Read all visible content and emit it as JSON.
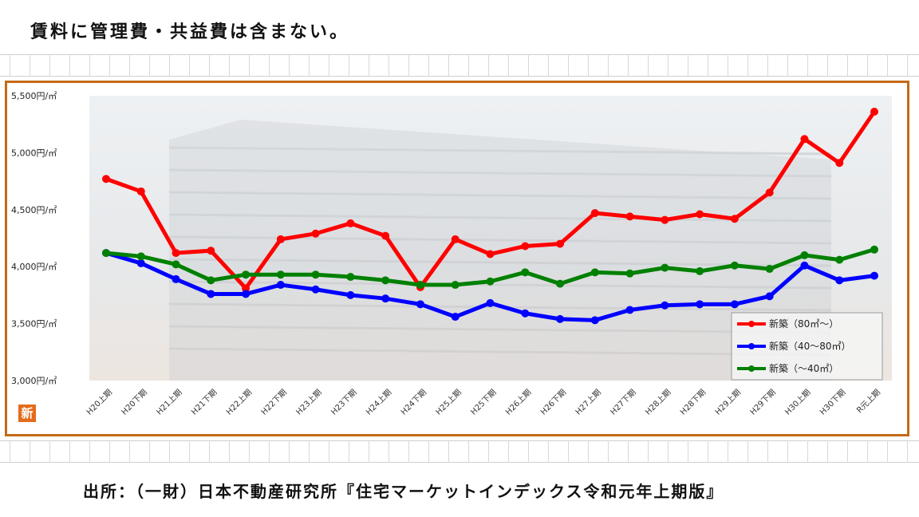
{
  "top_note": "賃料に管理費・共益費は含まない。",
  "source": "出所：（一財）日本不動産研究所『住宅マーケットインデックス令和元年上期版』",
  "logo_text": "新",
  "chart_data": {
    "type": "line",
    "title": "",
    "xlabel": "",
    "ylabel": "",
    "ylim": [
      3000,
      5500
    ],
    "y_ticks": [
      3000,
      3500,
      4000,
      4500,
      5000,
      5500
    ],
    "y_tick_labels": [
      "3,000円/㎡",
      "3,500円/㎡",
      "4,000円/㎡",
      "4,500円/㎡",
      "5,000円/㎡",
      "5,500円/㎡"
    ],
    "categories": [
      "H20上期",
      "H20下期",
      "H21上期",
      "H21下期",
      "H22上期",
      "H22下期",
      "H23上期",
      "H23下期",
      "H24上期",
      "H24下期",
      "H25上期",
      "H25下期",
      "H26上期",
      "H26下期",
      "H27上期",
      "H27下期",
      "H28上期",
      "H28下期",
      "H29上期",
      "H29下期",
      "H30上期",
      "H30下期",
      "R元上期"
    ],
    "grid": false,
    "legend_position": "bottom-right",
    "series": [
      {
        "name": "新築（80㎡～）",
        "color": "#ff0000",
        "values": [
          4770,
          4660,
          4120,
          4140,
          3810,
          4240,
          4290,
          4380,
          4270,
          3820,
          4240,
          4110,
          4180,
          4200,
          4470,
          4440,
          4410,
          4460,
          4420,
          4650,
          5120,
          4910,
          5360
        ]
      },
      {
        "name": "新築（40～80㎡）",
        "color": "#0000ff",
        "values": [
          4120,
          4030,
          3890,
          3760,
          3760,
          3840,
          3800,
          3750,
          3720,
          3670,
          3560,
          3680,
          3590,
          3540,
          3530,
          3620,
          3660,
          3670,
          3670,
          3740,
          4010,
          3880,
          3920
        ]
      },
      {
        "name": "新築（～40㎡）",
        "color": "#008000",
        "values": [
          4120,
          4090,
          4020,
          3880,
          3930,
          3930,
          3930,
          3910,
          3880,
          3840,
          3840,
          3870,
          3950,
          3850,
          3950,
          3940,
          3990,
          3960,
          4010,
          3980,
          4100,
          4060,
          4150
        ]
      }
    ]
  }
}
